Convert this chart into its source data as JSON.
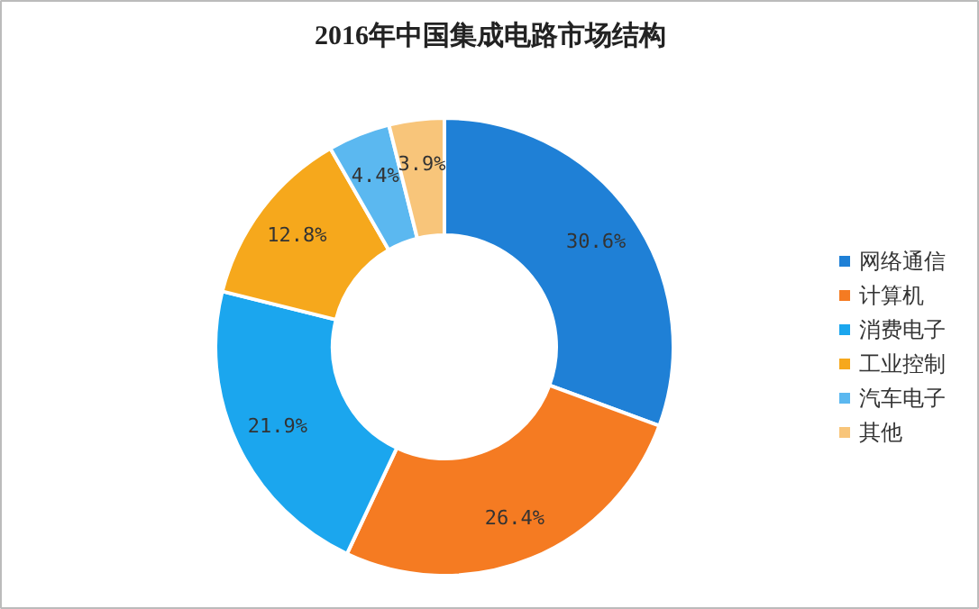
{
  "chart_data": {
    "type": "donut",
    "title": "2016年中国集成电路市场结构",
    "categories": [
      "网络通信",
      "计算机",
      "消费电子",
      "工业控制",
      "汽车电子",
      "其他"
    ],
    "values": [
      30.6,
      26.4,
      21.9,
      12.8,
      4.4,
      3.9
    ],
    "colors": [
      "#1f80d6",
      "#f57b22",
      "#1ba6ee",
      "#f6a81c",
      "#5bb8f0",
      "#f8c57a"
    ],
    "value_labels": [
      "30.6%",
      "26.4%",
      "21.9%",
      "12.8%",
      "4.4%",
      "3.9%"
    ],
    "legend": "right"
  }
}
